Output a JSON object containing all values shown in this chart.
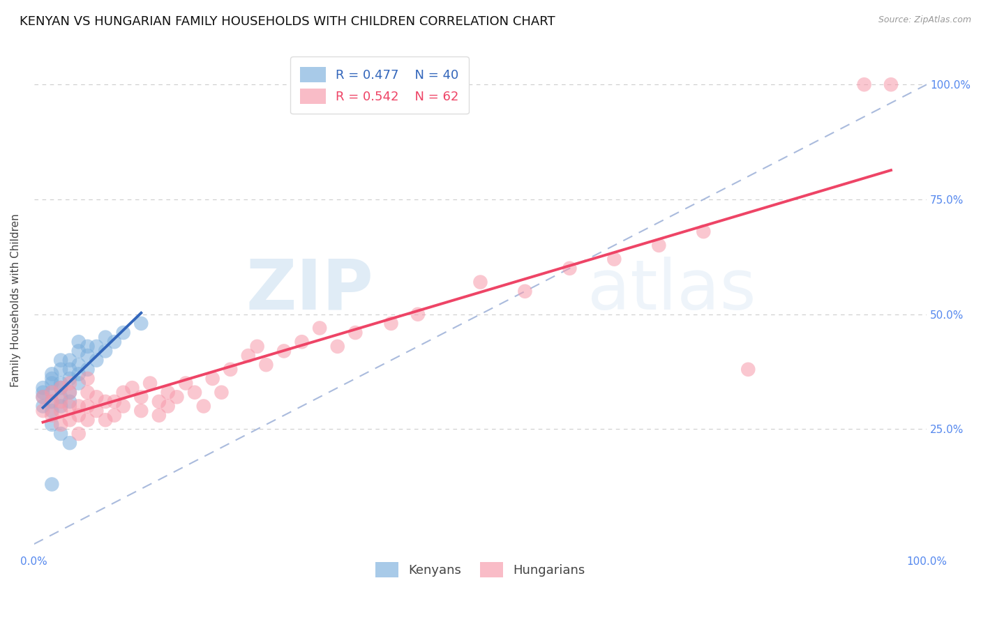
{
  "title": "KENYAN VS HUNGARIAN FAMILY HOUSEHOLDS WITH CHILDREN CORRELATION CHART",
  "source": "Source: ZipAtlas.com",
  "ylabel": "Family Households with Children",
  "xlim": [
    0.0,
    1.0
  ],
  "ylim": [
    -0.02,
    1.08
  ],
  "kenyan_color": "#7aaedd",
  "hungarian_color": "#f799aa",
  "kenyan_R": 0.477,
  "kenyan_N": 40,
  "hungarian_R": 0.542,
  "hungarian_N": 62,
  "kenyan_scatter": [
    [
      0.01,
      0.3
    ],
    [
      0.01,
      0.32
    ],
    [
      0.01,
      0.33
    ],
    [
      0.01,
      0.34
    ],
    [
      0.02,
      0.29
    ],
    [
      0.02,
      0.31
    ],
    [
      0.02,
      0.33
    ],
    [
      0.02,
      0.35
    ],
    [
      0.02,
      0.36
    ],
    [
      0.02,
      0.37
    ],
    [
      0.03,
      0.3
    ],
    [
      0.03,
      0.32
    ],
    [
      0.03,
      0.34
    ],
    [
      0.03,
      0.35
    ],
    [
      0.03,
      0.38
    ],
    [
      0.03,
      0.4
    ],
    [
      0.04,
      0.31
    ],
    [
      0.04,
      0.33
    ],
    [
      0.04,
      0.36
    ],
    [
      0.04,
      0.38
    ],
    [
      0.04,
      0.4
    ],
    [
      0.05,
      0.35
    ],
    [
      0.05,
      0.37
    ],
    [
      0.05,
      0.39
    ],
    [
      0.05,
      0.42
    ],
    [
      0.05,
      0.44
    ],
    [
      0.06,
      0.38
    ],
    [
      0.06,
      0.41
    ],
    [
      0.06,
      0.43
    ],
    [
      0.07,
      0.4
    ],
    [
      0.07,
      0.43
    ],
    [
      0.08,
      0.42
    ],
    [
      0.08,
      0.45
    ],
    [
      0.09,
      0.44
    ],
    [
      0.1,
      0.46
    ],
    [
      0.12,
      0.48
    ],
    [
      0.02,
      0.26
    ],
    [
      0.03,
      0.24
    ],
    [
      0.04,
      0.22
    ],
    [
      0.02,
      0.13
    ]
  ],
  "hungarian_scatter": [
    [
      0.01,
      0.32
    ],
    [
      0.01,
      0.29
    ],
    [
      0.02,
      0.31
    ],
    [
      0.02,
      0.28
    ],
    [
      0.02,
      0.33
    ],
    [
      0.03,
      0.26
    ],
    [
      0.03,
      0.29
    ],
    [
      0.03,
      0.31
    ],
    [
      0.03,
      0.34
    ],
    [
      0.04,
      0.27
    ],
    [
      0.04,
      0.3
    ],
    [
      0.04,
      0.33
    ],
    [
      0.04,
      0.35
    ],
    [
      0.05,
      0.28
    ],
    [
      0.05,
      0.3
    ],
    [
      0.05,
      0.24
    ],
    [
      0.06,
      0.27
    ],
    [
      0.06,
      0.3
    ],
    [
      0.06,
      0.33
    ],
    [
      0.06,
      0.36
    ],
    [
      0.07,
      0.29
    ],
    [
      0.07,
      0.32
    ],
    [
      0.08,
      0.31
    ],
    [
      0.08,
      0.27
    ],
    [
      0.09,
      0.28
    ],
    [
      0.09,
      0.31
    ],
    [
      0.1,
      0.3
    ],
    [
      0.1,
      0.33
    ],
    [
      0.11,
      0.34
    ],
    [
      0.12,
      0.29
    ],
    [
      0.12,
      0.32
    ],
    [
      0.13,
      0.35
    ],
    [
      0.14,
      0.31
    ],
    [
      0.14,
      0.28
    ],
    [
      0.15,
      0.3
    ],
    [
      0.15,
      0.33
    ],
    [
      0.16,
      0.32
    ],
    [
      0.17,
      0.35
    ],
    [
      0.18,
      0.33
    ],
    [
      0.19,
      0.3
    ],
    [
      0.2,
      0.36
    ],
    [
      0.21,
      0.33
    ],
    [
      0.22,
      0.38
    ],
    [
      0.24,
      0.41
    ],
    [
      0.25,
      0.43
    ],
    [
      0.26,
      0.39
    ],
    [
      0.28,
      0.42
    ],
    [
      0.3,
      0.44
    ],
    [
      0.32,
      0.47
    ],
    [
      0.34,
      0.43
    ],
    [
      0.36,
      0.46
    ],
    [
      0.4,
      0.48
    ],
    [
      0.43,
      0.5
    ],
    [
      0.5,
      0.57
    ],
    [
      0.55,
      0.55
    ],
    [
      0.6,
      0.6
    ],
    [
      0.65,
      0.62
    ],
    [
      0.7,
      0.65
    ],
    [
      0.75,
      0.68
    ],
    [
      0.8,
      0.38
    ],
    [
      0.93,
      1.0
    ],
    [
      0.96,
      1.0
    ]
  ],
  "watermark_text": "ZIPatlas",
  "background_color": "#ffffff",
  "grid_color": "#cccccc",
  "refline_color": "#aabbdd",
  "kenyan_line_color": "#3366bb",
  "hungarian_line_color": "#ee4466",
  "title_fontsize": 13,
  "axis_label_fontsize": 11,
  "tick_fontsize": 11,
  "legend_fontsize": 13
}
